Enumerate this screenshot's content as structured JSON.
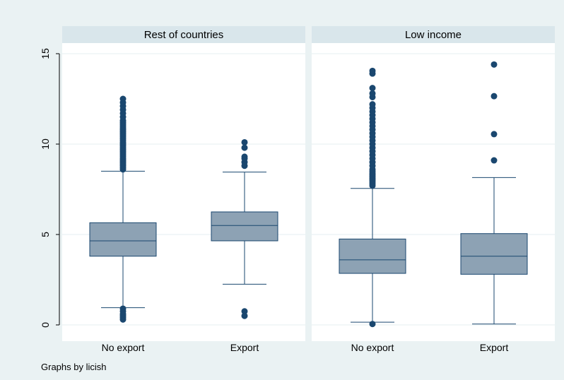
{
  "colors": {
    "background": "#eaf2f3",
    "plot_area": "#ffffff",
    "strip": "#d9e6eb",
    "box_fill": "#8da2b4",
    "box_stroke": "#1a476f",
    "outlier": "#1a476f",
    "axis": "#000000",
    "grid": "#eaf2f3"
  },
  "note": "Graphs by licish",
  "chart_data": {
    "type": "box",
    "y_ticks": [
      0,
      5,
      10,
      15
    ],
    "ylim": [
      0,
      15
    ],
    "grid": true,
    "panels": [
      {
        "title": "Rest of countries",
        "categories": [
          "No export",
          "Export"
        ],
        "boxes": [
          {
            "q1": 3.8,
            "median": 4.65,
            "q3": 5.65,
            "whisker_low": 0.95,
            "whisker_high": 8.5,
            "outliers": [
              0.3,
              0.4,
              0.5,
              0.6,
              0.75,
              0.9,
              8.6,
              8.7,
              8.8,
              8.9,
              9.0,
              9.1,
              9.2,
              9.3,
              9.4,
              9.5,
              9.6,
              9.7,
              9.8,
              9.9,
              10.0,
              10.1,
              10.2,
              10.3,
              10.4,
              10.5,
              10.6,
              10.7,
              10.8,
              10.9,
              11.0,
              11.1,
              11.2,
              11.3,
              11.5,
              11.7,
              11.9,
              12.1,
              12.3,
              12.5
            ]
          },
          {
            "q1": 4.65,
            "median": 5.5,
            "q3": 6.25,
            "whisker_low": 2.25,
            "whisker_high": 8.45,
            "outliers": [
              0.5,
              0.75,
              8.8,
              9.0,
              9.2,
              9.3,
              9.8,
              10.1
            ]
          }
        ]
      },
      {
        "title": "Low income",
        "categories": [
          "No export",
          "Export"
        ],
        "boxes": [
          {
            "q1": 2.85,
            "median": 3.6,
            "q3": 4.75,
            "whisker_low": 0.15,
            "whisker_high": 7.55,
            "outliers": [
              0.05,
              7.7,
              7.8,
              7.9,
              8.0,
              8.1,
              8.2,
              8.3,
              8.4,
              8.5,
              8.6,
              8.8,
              9.0,
              9.2,
              9.4,
              9.6,
              9.8,
              10.0,
              10.2,
              10.4,
              10.6,
              10.8,
              11.0,
              11.2,
              11.4,
              11.6,
              11.8,
              12.0,
              12.2,
              12.6,
              12.8,
              13.1,
              13.9,
              14.05
            ]
          },
          {
            "q1": 2.8,
            "median": 3.8,
            "q3": 5.05,
            "whisker_low": 0.05,
            "whisker_high": 8.15,
            "outliers": [
              9.1,
              10.55,
              12.65,
              14.4
            ]
          }
        ]
      }
    ]
  }
}
